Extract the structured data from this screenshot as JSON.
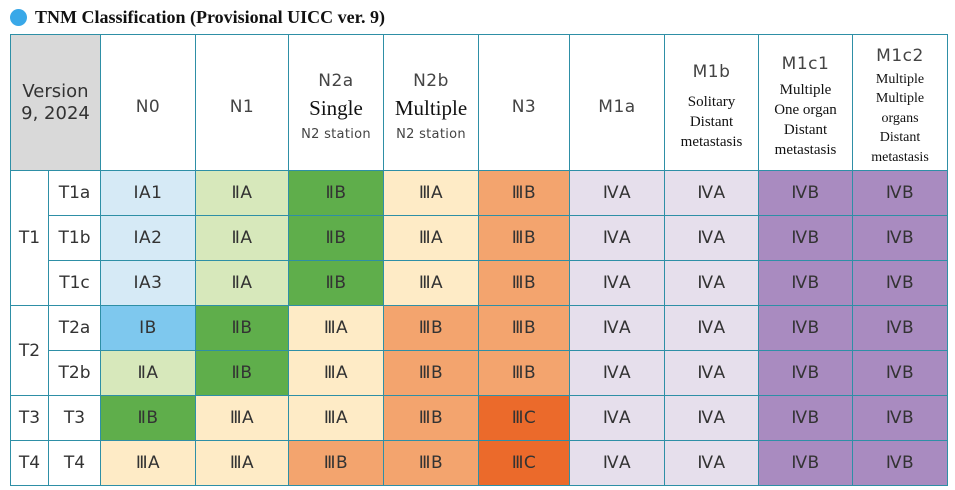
{
  "title": "TNM Classification (Provisional UICC ver. 9)",
  "corner": {
    "line1": "Version",
    "line2": "9, 2024"
  },
  "columns": [
    {
      "code": "N0"
    },
    {
      "code": "N1"
    },
    {
      "code": "N2a",
      "main": "Single",
      "sub": "N2 station"
    },
    {
      "code": "N2b",
      "main": "Multiple",
      "sub": "N2 station"
    },
    {
      "code": "N3"
    },
    {
      "code": "M1a"
    },
    {
      "code": "M1b",
      "lines": [
        "Solitary",
        "Distant",
        "metastasis"
      ]
    },
    {
      "code": "M1c1",
      "lines": [
        "Multiple",
        "One organ",
        "Distant",
        "metastasis"
      ]
    },
    {
      "code": "M1c2",
      "lines": [
        "Multiple",
        "Multiple",
        "organs",
        "Distant",
        "metastasis"
      ]
    }
  ],
  "groups": [
    {
      "label": "T1",
      "rows": [
        {
          "label": "T1a",
          "stages": [
            "ⅠA1",
            "ⅡA",
            "ⅡB",
            "ⅢA",
            "ⅢB",
            "ⅣA",
            "ⅣA",
            "ⅣB",
            "ⅣB"
          ]
        },
        {
          "label": "T1b",
          "stages": [
            "ⅠA2",
            "ⅡA",
            "ⅡB",
            "ⅢA",
            "ⅢB",
            "ⅣA",
            "ⅣA",
            "ⅣB",
            "ⅣB"
          ]
        },
        {
          "label": "T1c",
          "stages": [
            "ⅠA3",
            "ⅡA",
            "ⅡB",
            "ⅢA",
            "ⅢB",
            "ⅣA",
            "ⅣA",
            "ⅣB",
            "ⅣB"
          ]
        }
      ]
    },
    {
      "label": "T2",
      "rows": [
        {
          "label": "T2a",
          "stages": [
            "ⅠB",
            "ⅡB",
            "ⅢA",
            "ⅢB",
            "ⅢB",
            "ⅣA",
            "ⅣA",
            "ⅣB",
            "ⅣB"
          ]
        },
        {
          "label": "T2b",
          "stages": [
            "ⅡA",
            "ⅡB",
            "ⅢA",
            "ⅢB",
            "ⅢB",
            "ⅣA",
            "ⅣA",
            "ⅣB",
            "ⅣB"
          ]
        }
      ]
    },
    {
      "label": "T3",
      "rows": [
        {
          "label": "T3",
          "stages": [
            "ⅡB",
            "ⅢA",
            "ⅢA",
            "ⅢB",
            "ⅢC",
            "ⅣA",
            "ⅣA",
            "ⅣB",
            "ⅣB"
          ]
        }
      ]
    },
    {
      "label": "T4",
      "rows": [
        {
          "label": "T4",
          "stages": [
            "ⅢA",
            "ⅢA",
            "ⅢB",
            "ⅢB",
            "ⅢC",
            "ⅣA",
            "ⅣA",
            "ⅣB",
            "ⅣB"
          ]
        }
      ]
    }
  ],
  "stage_colors": {
    "IA": "#d6eaf6",
    "IB": "#7ec8ee",
    "IIA": "#d7e8bb",
    "IIB": "#5fae4b",
    "IIIA": "#feebc6",
    "IIIB": "#f3a46e",
    "IIIC": "#eb6a2b",
    "IVA": "#e6dfec",
    "IVB": "#a98bc0"
  }
}
